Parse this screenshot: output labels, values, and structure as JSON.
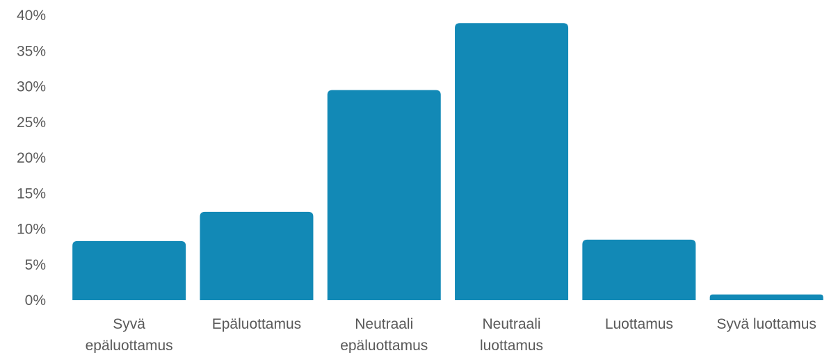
{
  "chart_data": {
    "type": "bar",
    "categories": [
      [
        "Syvä",
        "epäluottamus"
      ],
      [
        "Epäluottamus"
      ],
      [
        "Neutraali",
        "epäluottamus"
      ],
      [
        "Neutraali",
        "luottamus"
      ],
      [
        "Luottamus"
      ],
      [
        "Syvä luottamus"
      ]
    ],
    "values": [
      8.3,
      12.4,
      29.5,
      38.9,
      8.5,
      0.8
    ],
    "ylim": [
      0,
      40
    ],
    "yticks": [
      0,
      5,
      10,
      15,
      20,
      25,
      30,
      35,
      40
    ],
    "ytick_labels": [
      "0%",
      "5%",
      "10%",
      "15%",
      "20%",
      "25%",
      "30%",
      "35%",
      "40%"
    ],
    "grid": false,
    "colors": {
      "bar": "#1289b6",
      "text": "#595959"
    }
  }
}
